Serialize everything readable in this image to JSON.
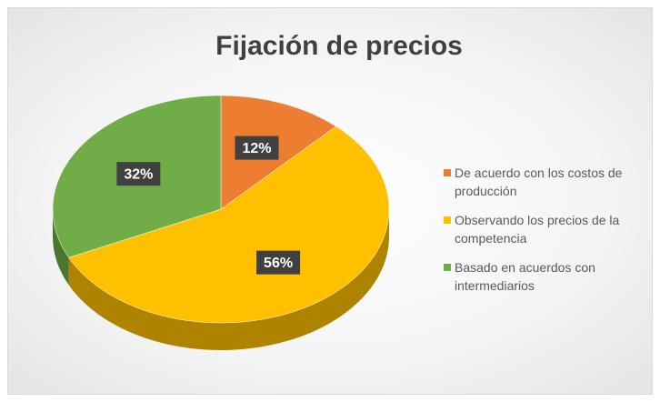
{
  "chart_data": {
    "type": "pie",
    "title": "Fijación de precios",
    "categories": [
      "De acuerdo con los costos de producción",
      "Observando los precios de la competencia",
      "Basado en acuerdos con intermediarios"
    ],
    "values": [
      12,
      56,
      32
    ],
    "value_labels": [
      "12%",
      "56%",
      "32%"
    ],
    "colors": [
      "#ED7D31",
      "#FFC000",
      "#70AD47"
    ],
    "legend": "right"
  }
}
